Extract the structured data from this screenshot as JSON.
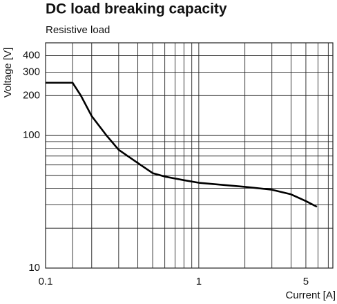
{
  "chart_data": {
    "type": "line",
    "title": "DC load breaking capacity",
    "subtitle": "Resistive load",
    "x_label": "Current [A]",
    "y_label": "Voltage [V]",
    "x_scale": "log",
    "y_scale": "log",
    "grid": true,
    "xlim": [
      0.1,
      7.5
    ],
    "ylim": [
      10,
      500
    ],
    "xticks": [
      0.1,
      1,
      5
    ],
    "xminor": [
      0.15,
      0.2,
      0.3,
      0.4,
      0.5,
      0.6,
      0.7,
      0.8,
      0.9,
      2,
      3,
      4,
      6,
      7
    ],
    "yticks": [
      10,
      100,
      200,
      300,
      400
    ],
    "yminor": [
      20,
      30,
      40,
      50,
      60,
      70,
      80,
      90
    ],
    "series": [
      {
        "color": "#000000",
        "x": [
          0.1,
          0.15,
          0.17,
          0.2,
          0.25,
          0.3,
          0.4,
          0.5,
          0.6,
          0.8,
          1,
          2,
          3,
          4,
          5,
          5.9
        ],
        "values": [
          250,
          250,
          200,
          140,
          100,
          78,
          62,
          52,
          49,
          46,
          44,
          41,
          39,
          36,
          32,
          29
        ]
      }
    ]
  }
}
